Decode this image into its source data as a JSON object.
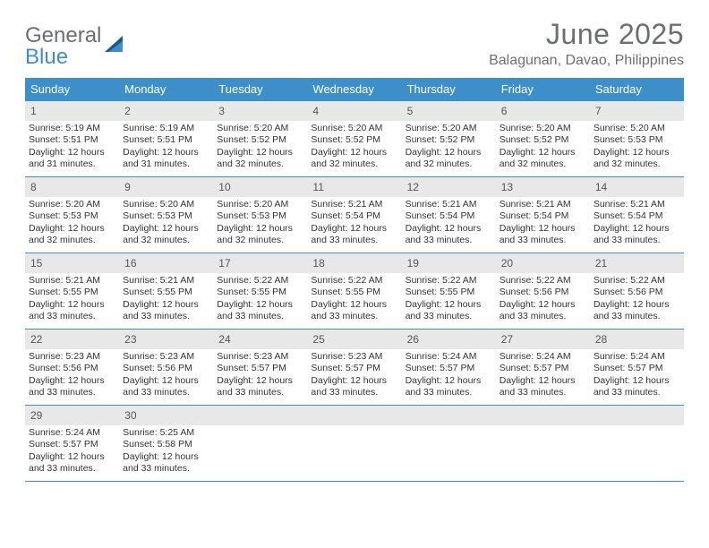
{
  "brand": {
    "part1": "General",
    "part2": "Blue"
  },
  "title": "June 2025",
  "location": "Balagunan, Davao, Philippines",
  "colors": {
    "header_bg": "#3d8fc9",
    "header_text": "#ffffff",
    "daynum_bg": "#e8e8e8",
    "title_color": "#6d6e71",
    "rule_color": "#3d8fc9"
  },
  "weekdays": [
    "Sunday",
    "Monday",
    "Tuesday",
    "Wednesday",
    "Thursday",
    "Friday",
    "Saturday"
  ],
  "layout": {
    "first_weekday_index": 0,
    "days_in_month": 30
  },
  "days": [
    {
      "n": 1,
      "sunrise": "5:19 AM",
      "sunset": "5:51 PM",
      "daylight": "12 hours and 31 minutes."
    },
    {
      "n": 2,
      "sunrise": "5:19 AM",
      "sunset": "5:51 PM",
      "daylight": "12 hours and 31 minutes."
    },
    {
      "n": 3,
      "sunrise": "5:20 AM",
      "sunset": "5:52 PM",
      "daylight": "12 hours and 32 minutes."
    },
    {
      "n": 4,
      "sunrise": "5:20 AM",
      "sunset": "5:52 PM",
      "daylight": "12 hours and 32 minutes."
    },
    {
      "n": 5,
      "sunrise": "5:20 AM",
      "sunset": "5:52 PM",
      "daylight": "12 hours and 32 minutes."
    },
    {
      "n": 6,
      "sunrise": "5:20 AM",
      "sunset": "5:52 PM",
      "daylight": "12 hours and 32 minutes."
    },
    {
      "n": 7,
      "sunrise": "5:20 AM",
      "sunset": "5:53 PM",
      "daylight": "12 hours and 32 minutes."
    },
    {
      "n": 8,
      "sunrise": "5:20 AM",
      "sunset": "5:53 PM",
      "daylight": "12 hours and 32 minutes."
    },
    {
      "n": 9,
      "sunrise": "5:20 AM",
      "sunset": "5:53 PM",
      "daylight": "12 hours and 32 minutes."
    },
    {
      "n": 10,
      "sunrise": "5:20 AM",
      "sunset": "5:53 PM",
      "daylight": "12 hours and 32 minutes."
    },
    {
      "n": 11,
      "sunrise": "5:21 AM",
      "sunset": "5:54 PM",
      "daylight": "12 hours and 33 minutes."
    },
    {
      "n": 12,
      "sunrise": "5:21 AM",
      "sunset": "5:54 PM",
      "daylight": "12 hours and 33 minutes."
    },
    {
      "n": 13,
      "sunrise": "5:21 AM",
      "sunset": "5:54 PM",
      "daylight": "12 hours and 33 minutes."
    },
    {
      "n": 14,
      "sunrise": "5:21 AM",
      "sunset": "5:54 PM",
      "daylight": "12 hours and 33 minutes."
    },
    {
      "n": 15,
      "sunrise": "5:21 AM",
      "sunset": "5:55 PM",
      "daylight": "12 hours and 33 minutes."
    },
    {
      "n": 16,
      "sunrise": "5:21 AM",
      "sunset": "5:55 PM",
      "daylight": "12 hours and 33 minutes."
    },
    {
      "n": 17,
      "sunrise": "5:22 AM",
      "sunset": "5:55 PM",
      "daylight": "12 hours and 33 minutes."
    },
    {
      "n": 18,
      "sunrise": "5:22 AM",
      "sunset": "5:55 PM",
      "daylight": "12 hours and 33 minutes."
    },
    {
      "n": 19,
      "sunrise": "5:22 AM",
      "sunset": "5:55 PM",
      "daylight": "12 hours and 33 minutes."
    },
    {
      "n": 20,
      "sunrise": "5:22 AM",
      "sunset": "5:56 PM",
      "daylight": "12 hours and 33 minutes."
    },
    {
      "n": 21,
      "sunrise": "5:22 AM",
      "sunset": "5:56 PM",
      "daylight": "12 hours and 33 minutes."
    },
    {
      "n": 22,
      "sunrise": "5:23 AM",
      "sunset": "5:56 PM",
      "daylight": "12 hours and 33 minutes."
    },
    {
      "n": 23,
      "sunrise": "5:23 AM",
      "sunset": "5:56 PM",
      "daylight": "12 hours and 33 minutes."
    },
    {
      "n": 24,
      "sunrise": "5:23 AM",
      "sunset": "5:57 PM",
      "daylight": "12 hours and 33 minutes."
    },
    {
      "n": 25,
      "sunrise": "5:23 AM",
      "sunset": "5:57 PM",
      "daylight": "12 hours and 33 minutes."
    },
    {
      "n": 26,
      "sunrise": "5:24 AM",
      "sunset": "5:57 PM",
      "daylight": "12 hours and 33 minutes."
    },
    {
      "n": 27,
      "sunrise": "5:24 AM",
      "sunset": "5:57 PM",
      "daylight": "12 hours and 33 minutes."
    },
    {
      "n": 28,
      "sunrise": "5:24 AM",
      "sunset": "5:57 PM",
      "daylight": "12 hours and 33 minutes."
    },
    {
      "n": 29,
      "sunrise": "5:24 AM",
      "sunset": "5:57 PM",
      "daylight": "12 hours and 33 minutes."
    },
    {
      "n": 30,
      "sunrise": "5:25 AM",
      "sunset": "5:58 PM",
      "daylight": "12 hours and 33 minutes."
    }
  ],
  "labels": {
    "sunrise": "Sunrise:",
    "sunset": "Sunset:",
    "daylight": "Daylight:"
  }
}
